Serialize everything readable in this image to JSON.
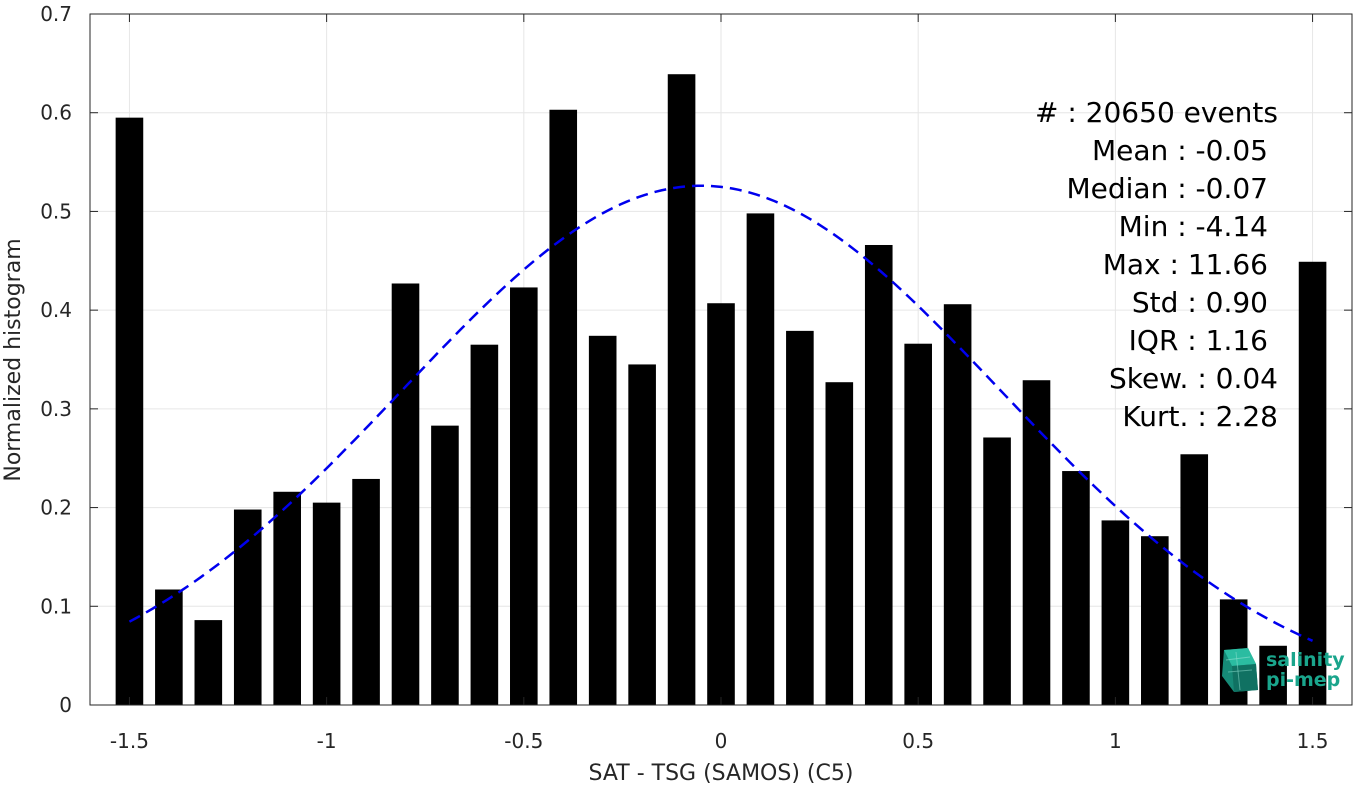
{
  "chart_data": {
    "type": "bar",
    "xlabel": "SAT - TSG (SAMOS) (C5)",
    "ylabel": "Normalized histogram",
    "xlim": [
      -1.6,
      1.6
    ],
    "ylim": [
      0,
      0.7
    ],
    "xticks": [
      -1.5,
      -1,
      -0.5,
      0,
      0.5,
      1,
      1.5
    ],
    "xtick_labels": [
      "-1.5",
      "-1",
      "-0.5",
      "0",
      "0.5",
      "1",
      "1.5"
    ],
    "yticks": [
      0,
      0.1,
      0.2,
      0.3,
      0.4,
      0.5,
      0.6,
      0.7
    ],
    "ytick_labels": [
      "0",
      "0.1",
      "0.2",
      "0.3",
      "0.4",
      "0.5",
      "0.6",
      "0.7"
    ],
    "grid": true,
    "bar_width": 0.07,
    "bar_color": "#000000",
    "x": [
      -1.5,
      -1.4,
      -1.3,
      -1.2,
      -1.1,
      -1.0,
      -0.9,
      -0.8,
      -0.7,
      -0.6,
      -0.5,
      -0.4,
      -0.3,
      -0.2,
      -0.1,
      0.0,
      0.1,
      0.2,
      0.3,
      0.4,
      0.5,
      0.6,
      0.7,
      0.8,
      0.9,
      1.0,
      1.1,
      1.2,
      1.3,
      1.4,
      1.5
    ],
    "values": [
      0.595,
      0.117,
      0.086,
      0.198,
      0.216,
      0.205,
      0.229,
      0.427,
      0.283,
      0.365,
      0.423,
      0.603,
      0.374,
      0.345,
      0.639,
      0.407,
      0.498,
      0.379,
      0.327,
      0.466,
      0.366,
      0.406,
      0.271,
      0.329,
      0.237,
      0.187,
      0.171,
      0.254,
      0.107,
      0.06,
      0.449
    ],
    "fit_curve": {
      "style": "dashed",
      "color": "#0000ee",
      "mean": -0.05,
      "std": 0.758,
      "peak": 0.526,
      "x_range": [
        -1.5,
        1.5
      ]
    },
    "stats_lines": [
      "#  : 20650 events",
      "Mean : -0.05",
      "Median : -0.07",
      "Min : -4.14",
      "Max : 11.66",
      "Std : 0.90",
      "IQR : 1.16",
      "Skew. : 0.04",
      "Kurt. : 2.28"
    ]
  },
  "logo": {
    "line1": "salinity",
    "line2": "pi-mep",
    "color": "#1aa58c"
  }
}
